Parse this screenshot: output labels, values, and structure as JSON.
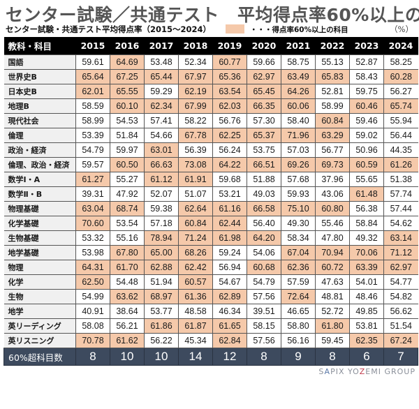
{
  "title": {
    "left": "センター試験／共通テスト",
    "right": "平均得点率60%以上の科目"
  },
  "subtitle": "センター試験・共通テスト平均得点率（2015〜2024）",
  "legend": {
    "label": "・・・得点率60%以上の科目",
    "highlight_color": "#f5c9aa"
  },
  "unit": "（%）",
  "table": {
    "header": {
      "subject_label": "教科・科目",
      "years": [
        "2015",
        "2016",
        "2017",
        "2018",
        "2019",
        "2020",
        "2021",
        "2022",
        "2023",
        "2024"
      ]
    },
    "rows": [
      {
        "subject": "国語",
        "values": [
          "59.61",
          "64.69",
          "53.48",
          "52.34",
          "60.77",
          "59.66",
          "58.75",
          "55.13",
          "52.87",
          "58.25"
        ]
      },
      {
        "subject": "世界史B",
        "values": [
          "65.64",
          "67.25",
          "65.44",
          "67.97",
          "65.36",
          "62.97",
          "63.49",
          "65.83",
          "58.43",
          "60.28"
        ]
      },
      {
        "subject": "日本史B",
        "values": [
          "62.01",
          "65.55",
          "59.29",
          "62.19",
          "63.54",
          "65.45",
          "64.26",
          "52.81",
          "59.75",
          "56.27"
        ]
      },
      {
        "subject": "地理B",
        "values": [
          "58.59",
          "60.10",
          "62.34",
          "67.99",
          "62.03",
          "66.35",
          "60.06",
          "58.99",
          "60.46",
          "65.74"
        ]
      },
      {
        "subject": "現代社会",
        "values": [
          "58.99",
          "54.53",
          "57.41",
          "58.22",
          "56.76",
          "57.30",
          "58.40",
          "60.84",
          "59.46",
          "55.94"
        ]
      },
      {
        "subject": "倫理",
        "values": [
          "53.39",
          "51.84",
          "54.66",
          "67.78",
          "62.25",
          "65.37",
          "71.96",
          "63.29",
          "59.02",
          "56.44"
        ]
      },
      {
        "subject": "政治・経済",
        "values": [
          "54.79",
          "59.97",
          "63.01",
          "56.39",
          "56.24",
          "53.75",
          "57.03",
          "56.77",
          "50.96",
          "44.35"
        ]
      },
      {
        "subject": "倫理、政治・経済",
        "values": [
          "59.57",
          "60.50",
          "66.63",
          "73.08",
          "64.22",
          "66.51",
          "69.26",
          "69.73",
          "60.59",
          "61.26"
        ]
      },
      {
        "subject": "数学Ⅰ・A",
        "values": [
          "61.27",
          "55.27",
          "61.12",
          "61.91",
          "59.68",
          "51.88",
          "57.68",
          "37.96",
          "55.65",
          "51.38"
        ]
      },
      {
        "subject": "数学Ⅱ・B",
        "values": [
          "39.31",
          "47.92",
          "52.07",
          "51.07",
          "53.21",
          "49.03",
          "59.93",
          "43.06",
          "61.48",
          "57.74"
        ]
      },
      {
        "subject": "物理基礎",
        "values": [
          "63.04",
          "68.74",
          "59.38",
          "62.64",
          "61.16",
          "66.58",
          "75.10",
          "60.80",
          "56.38",
          "57.44"
        ]
      },
      {
        "subject": "化学基礎",
        "values": [
          "70.60",
          "53.54",
          "57.18",
          "60.84",
          "62.44",
          "56.40",
          "49.30",
          "55.46",
          "58.84",
          "54.62"
        ]
      },
      {
        "subject": "生物基礎",
        "values": [
          "53.32",
          "55.16",
          "78.94",
          "71.24",
          "61.98",
          "64.20",
          "58.34",
          "47.80",
          "49.32",
          "63.14"
        ]
      },
      {
        "subject": "地学基礎",
        "values": [
          "53.98",
          "67.80",
          "65.00",
          "68.26",
          "59.24",
          "54.06",
          "67.04",
          "70.94",
          "70.06",
          "71.12"
        ]
      },
      {
        "subject": "物理",
        "values": [
          "64.31",
          "61.70",
          "62.88",
          "62.42",
          "56.94",
          "60.68",
          "62.36",
          "60.72",
          "63.39",
          "62.97"
        ]
      },
      {
        "subject": "化学",
        "values": [
          "62.50",
          "54.48",
          "51.94",
          "60.57",
          "54.67",
          "54.79",
          "57.59",
          "47.63",
          "54.01",
          "54.77"
        ]
      },
      {
        "subject": "生物",
        "values": [
          "54.99",
          "63.62",
          "68.97",
          "61.36",
          "62.89",
          "57.56",
          "72.64",
          "48.81",
          "48.46",
          "54.82"
        ]
      },
      {
        "subject": "地学",
        "values": [
          "40.91",
          "38.64",
          "53.77",
          "48.58",
          "46.34",
          "39.51",
          "46.65",
          "52.72",
          "49.85",
          "56.62"
        ]
      },
      {
        "subject": "英リーディング",
        "values": [
          "58.08",
          "56.21",
          "61.86",
          "61.87",
          "61.65",
          "58.15",
          "58.80",
          "61.80",
          "53.81",
          "51.54"
        ]
      },
      {
        "subject": "英リスニング",
        "values": [
          "70.78",
          "61.62",
          "56.22",
          "45.34",
          "62.84",
          "57.56",
          "56.16",
          "59.45",
          "62.35",
          "67.24"
        ]
      }
    ],
    "footer": {
      "label": "60%超科目数",
      "counts": [
        "8",
        "10",
        "10",
        "14",
        "12",
        "8",
        "9",
        "8",
        "6",
        "7"
      ]
    }
  },
  "brand": {
    "s": "S",
    "a": "A",
    "pix": "PIX YO",
    "z": "Z",
    "rest": "EMI GROUP"
  },
  "colors": {
    "header_bg": "#000000",
    "footer_bg": "#3d4a5e",
    "highlight": "#f5c9aa",
    "subject_bg": "#f0f0f0"
  }
}
